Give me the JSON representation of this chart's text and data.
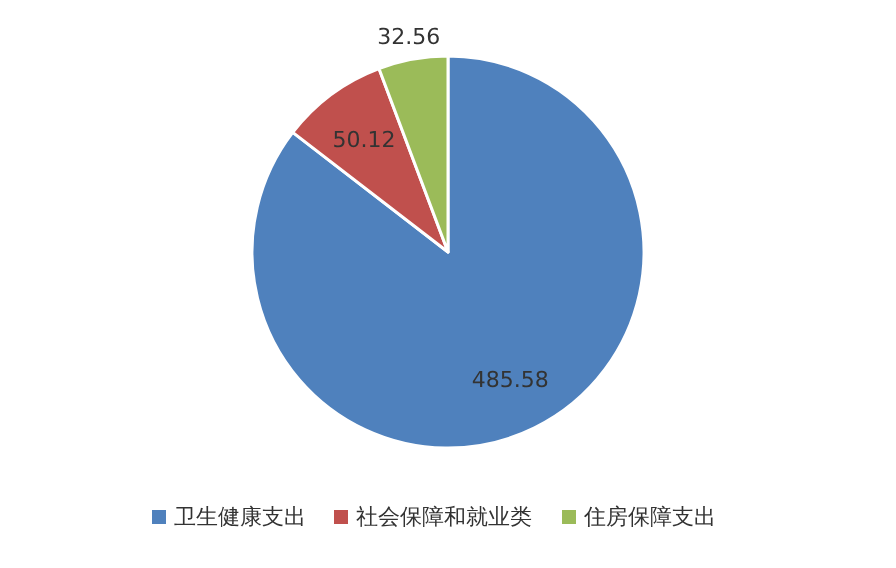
{
  "chart_data": {
    "type": "pie",
    "categories": [
      "卫生健康支出",
      "社会保障和就业类",
      "住房保障支出"
    ],
    "values": [
      485.58,
      50.12,
      32.56
    ],
    "colors": [
      "#4f81bd",
      "#c0504d",
      "#9bbb59"
    ],
    "data_labels": true,
    "legend": "bottom"
  }
}
